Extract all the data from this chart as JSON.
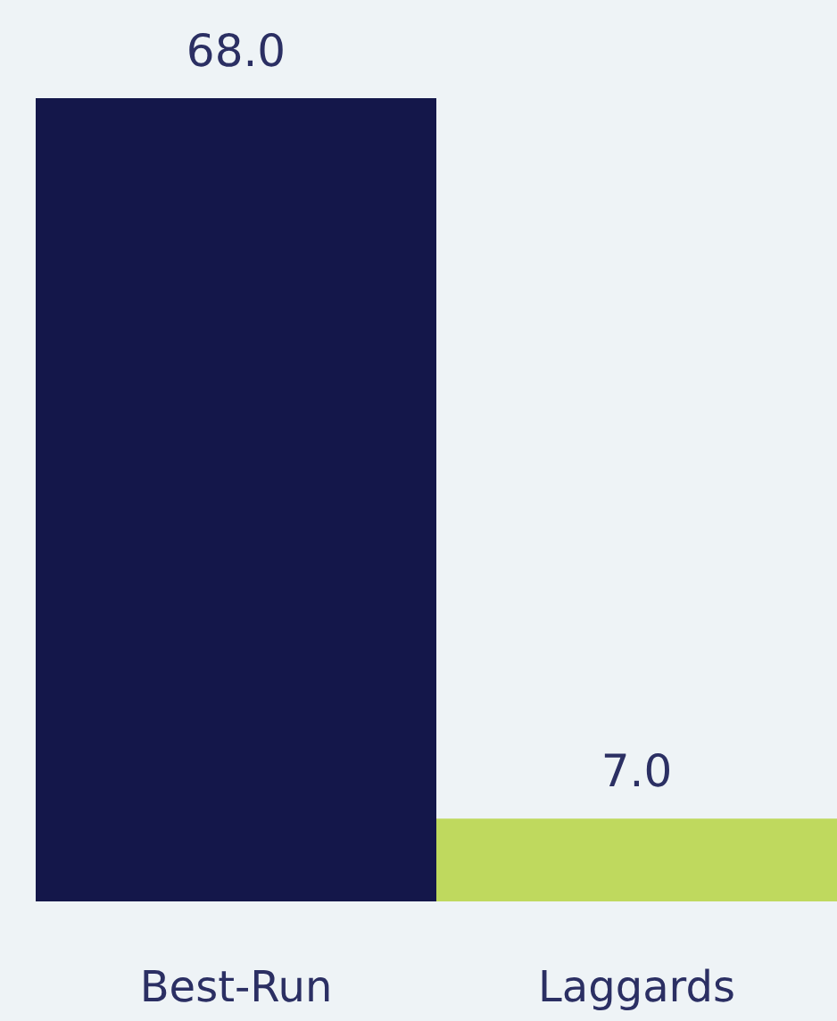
{
  "chart_data": {
    "type": "bar",
    "categories": [
      "Best-Run",
      "Laggards"
    ],
    "values": [
      68,
      7
    ],
    "colors": [
      "#14174a",
      "#bfd95e"
    ],
    "value_labels": [
      "68.0",
      "7.0"
    ],
    "tick_labels": "x",
    "grid": false
  }
}
